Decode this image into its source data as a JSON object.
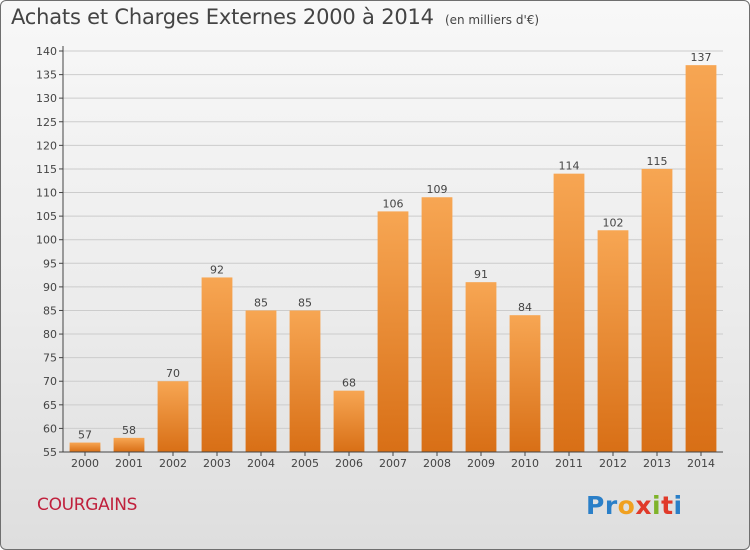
{
  "header": {
    "title": "Achats et Charges Externes 2000 à 2014",
    "unit": "(en milliers d'€)"
  },
  "footer": {
    "place": "COURGAINS",
    "brand_letters": [
      {
        "char": "P",
        "color": "#2a7fc8"
      },
      {
        "char": "r",
        "color": "#2a7fc8"
      },
      {
        "char": "o",
        "color": "#f0a020"
      },
      {
        "char": "x",
        "color": "#e03a2a"
      },
      {
        "char": "i",
        "color": "#7fb32a"
      },
      {
        "char": "t",
        "color": "#e03a2a"
      },
      {
        "char": "i",
        "color": "#2a7fc8"
      }
    ]
  },
  "colors": {
    "bar_light": "#f7a653",
    "bar_dark": "#d86f16",
    "axis": "#444444",
    "grid": "#cccccc"
  },
  "chart_data": {
    "type": "bar",
    "categories": [
      "2000",
      "2001",
      "2002",
      "2003",
      "2004",
      "2005",
      "2006",
      "2007",
      "2008",
      "2009",
      "2010",
      "2011",
      "2012",
      "2013",
      "2014"
    ],
    "values": [
      57,
      58,
      70,
      92,
      85,
      85,
      68,
      106,
      109,
      91,
      84,
      114,
      102,
      115,
      137
    ],
    "ylim": [
      55,
      140
    ],
    "yticks": [
      55,
      60,
      65,
      70,
      75,
      80,
      85,
      90,
      95,
      100,
      105,
      110,
      115,
      120,
      125,
      130,
      135,
      140
    ],
    "grid": true,
    "xlabel": "",
    "ylabel": ""
  }
}
